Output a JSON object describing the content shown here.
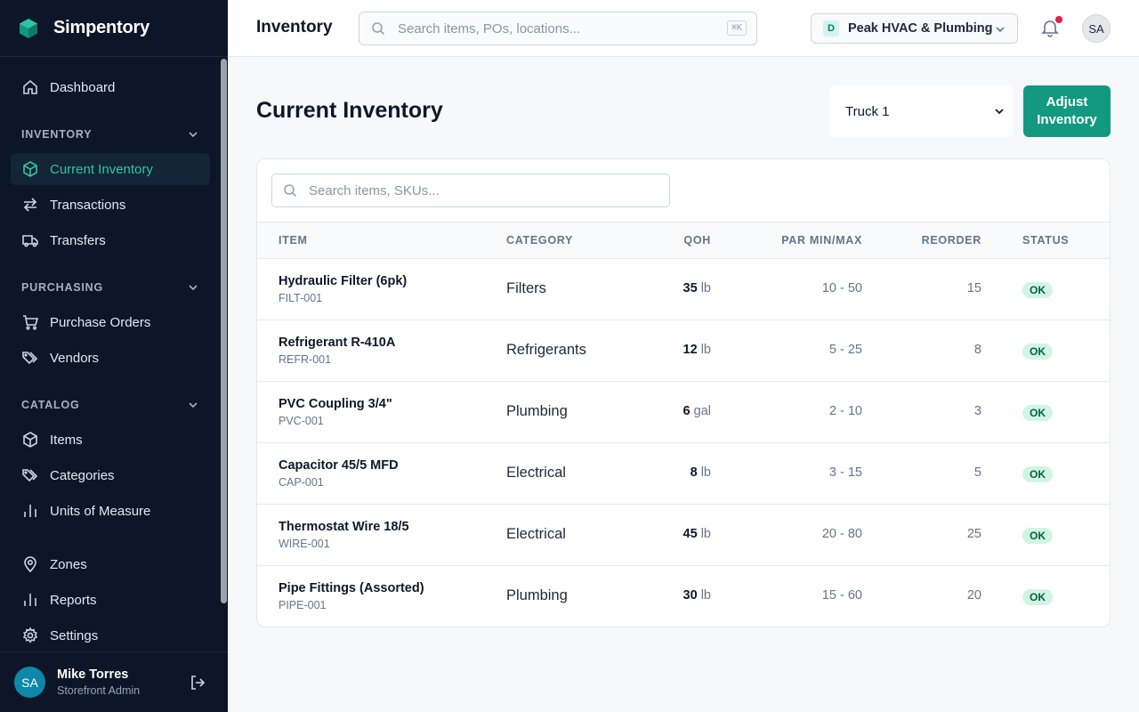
{
  "brand": {
    "name": "Simpentory"
  },
  "sidebar": {
    "dashboard": "Dashboard",
    "sections": {
      "inventory": "INVENTORY",
      "purchasing": "PURCHASING",
      "catalog": "CATALOG"
    },
    "items": {
      "current_inventory": "Current Inventory",
      "transactions": "Transactions",
      "transfers": "Transfers",
      "purchase_orders": "Purchase Orders",
      "vendors": "Vendors",
      "items": "Items",
      "categories": "Categories",
      "units_of_measure": "Units of Measure",
      "zones": "Zones",
      "reports": "Reports",
      "settings": "Settings"
    },
    "active": "current_inventory",
    "user": {
      "initials": "SA",
      "name": "Mike Torres",
      "role": "Storefront Admin"
    }
  },
  "topbar": {
    "title": "Inventory",
    "search_placeholder": "Search items, POs, locations...",
    "shortcut": "⌘K",
    "org": {
      "badge": "D",
      "name": "Peak HVAC & Plumbing"
    },
    "notifications_unread": true,
    "avatar_initials": "SA"
  },
  "main": {
    "title": "Current Inventory",
    "location_select": "Truck 1",
    "adjust_button": "Adjust Inventory",
    "table_search_placeholder": "Search items, SKUs...",
    "columns": {
      "item": "ITEM",
      "category": "CATEGORY",
      "qoh": "QOH",
      "par": "PAR MIN/MAX",
      "reorder": "REORDER",
      "status": "STATUS"
    },
    "rows": [
      {
        "name": "Hydraulic Filter (6pk)",
        "sku": "FILT-001",
        "category": "Filters",
        "qoh": "35",
        "unit": "lb",
        "par": "10 - 50",
        "reorder": "15",
        "status": "OK"
      },
      {
        "name": "Refrigerant R-410A",
        "sku": "REFR-001",
        "category": "Refrigerants",
        "qoh": "12",
        "unit": "lb",
        "par": "5 - 25",
        "reorder": "8",
        "status": "OK"
      },
      {
        "name": "PVC Coupling 3/4\"",
        "sku": "PVC-001",
        "category": "Plumbing",
        "qoh": "6",
        "unit": "gal",
        "par": "2 - 10",
        "reorder": "3",
        "status": "OK"
      },
      {
        "name": "Capacitor 45/5 MFD",
        "sku": "CAP-001",
        "category": "Electrical",
        "qoh": "8",
        "unit": "lb",
        "par": "3 - 15",
        "reorder": "5",
        "status": "OK"
      },
      {
        "name": "Thermostat Wire 18/5",
        "sku": "WIRE-001",
        "category": "Electrical",
        "qoh": "45",
        "unit": "lb",
        "par": "20 - 80",
        "reorder": "25",
        "status": "OK"
      },
      {
        "name": "Pipe Fittings (Assorted)",
        "sku": "PIPE-001",
        "category": "Plumbing",
        "qoh": "30",
        "unit": "lb",
        "par": "15 - 60",
        "reorder": "20",
        "status": "OK"
      }
    ]
  },
  "colors": {
    "sidebar_bg": "#0c1628",
    "accent": "#13997f",
    "active_text": "#2ec4a5",
    "status_ok_bg": "#d1f5e4",
    "notification_dot": "#e11d48"
  }
}
